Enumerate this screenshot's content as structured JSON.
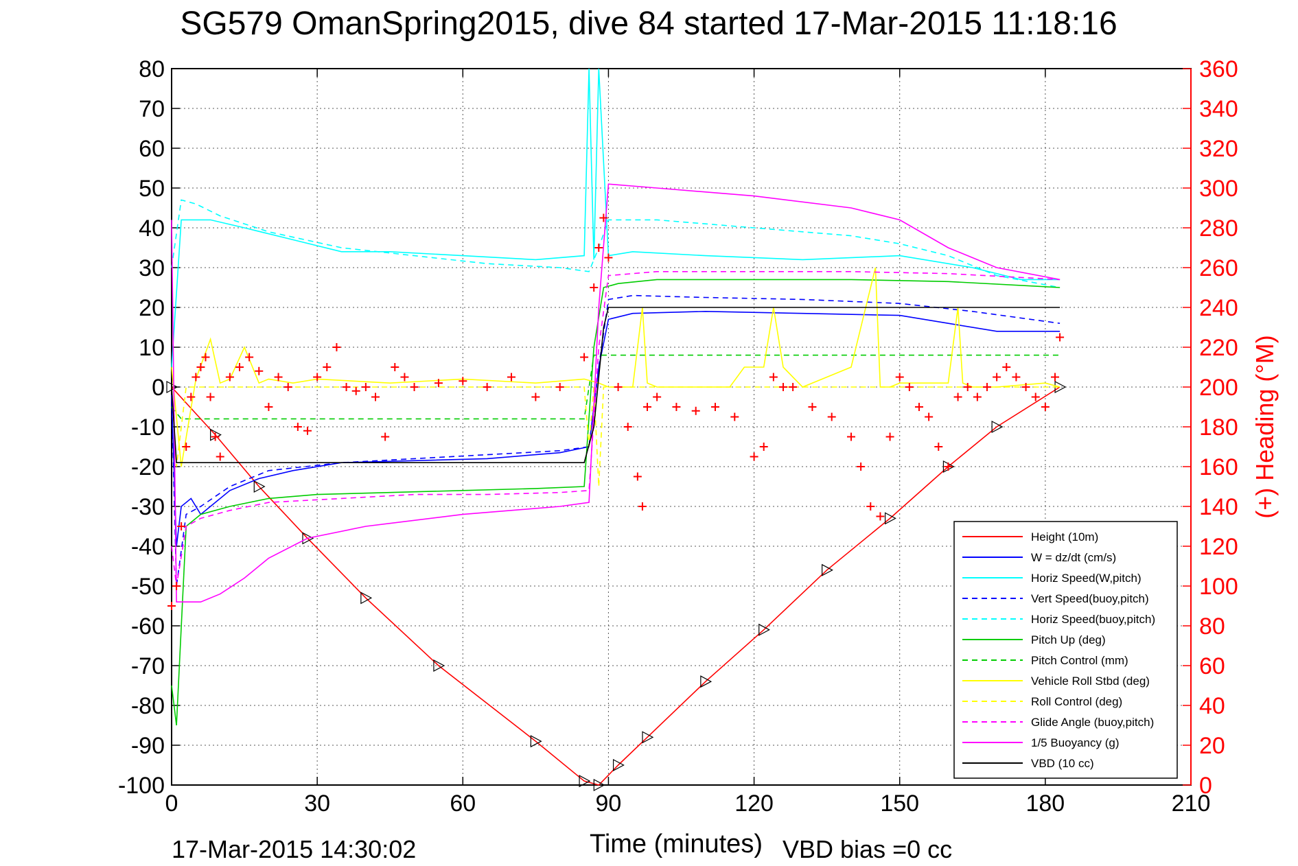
{
  "chart_data": {
    "type": "line",
    "title": "SG579 OmanSpring2015, dive 84 started 17-Mar-2015 11:18:16",
    "xlabel": "Time (minutes)",
    "ylabel": "",
    "ylabel_right": "(+) Heading (°M)",
    "footer_left": "17-Mar-2015 14:30:02",
    "footer_right": "VBD bias =0 cc",
    "xlim": [
      0,
      210
    ],
    "ylim": [
      -100,
      80
    ],
    "ylim_right": [
      0,
      360
    ],
    "xticks": [
      0,
      30,
      60,
      90,
      120,
      150,
      180,
      210
    ],
    "yticks": [
      -100,
      -90,
      -80,
      -70,
      -60,
      -50,
      -40,
      -30,
      -20,
      -10,
      0,
      10,
      20,
      30,
      40,
      50,
      60,
      70,
      80
    ],
    "yticks_right": [
      0,
      20,
      40,
      60,
      80,
      100,
      120,
      140,
      160,
      180,
      200,
      220,
      240,
      260,
      280,
      300,
      320,
      340,
      360
    ],
    "grid": true,
    "legend_position": "bottom-right",
    "legend": [
      {
        "label": "Height (10m)",
        "color": "#ff0000",
        "style": "solid"
      },
      {
        "label": "W = dz/dt (cm/s)",
        "color": "#0000ff",
        "style": "solid"
      },
      {
        "label": "Horiz Speed(W,pitch)",
        "color": "#00ffff",
        "style": "solid"
      },
      {
        "label": "Vert Speed(buoy,pitch)",
        "color": "#0000ff",
        "style": "dashed"
      },
      {
        "label": "Horiz Speed(buoy,pitch)",
        "color": "#00ffff",
        "style": "dashed"
      },
      {
        "label": "Pitch Up (deg)",
        "color": "#00cc00",
        "style": "solid"
      },
      {
        "label": "Pitch Control (mm)",
        "color": "#00cc00",
        "style": "dashed"
      },
      {
        "label": "Vehicle Roll Stbd (deg)",
        "color": "#ffff00",
        "style": "solid"
      },
      {
        "label": "Roll Control (deg)",
        "color": "#ffff00",
        "style": "dashed"
      },
      {
        "label": "Glide Angle (buoy,pitch)",
        "color": "#ff00ff",
        "style": "dashed"
      },
      {
        "label": "1/5 Buoyancy (g)",
        "color": "#ff00ff",
        "style": "solid"
      },
      {
        "label": "VBD (10 cc)",
        "color": "#000000",
        "style": "solid"
      }
    ],
    "series": [
      {
        "name": "Height (10m)",
        "color": "#ff0000",
        "style": "solid",
        "markers": "triangle",
        "x": [
          0,
          9,
          18,
          28,
          40,
          55,
          75,
          85,
          88,
          92,
          98,
          110,
          122,
          135,
          148,
          160,
          170,
          183
        ],
        "y": [
          0,
          -12,
          -25,
          -38,
          -53,
          -70,
          -89,
          -99,
          -100,
          -95,
          -88,
          -74,
          -61,
          -46,
          -33,
          -20,
          -10,
          0
        ]
      },
      {
        "name": "W = dz/dt (cm/s)",
        "color": "#0000ff",
        "style": "solid",
        "x": [
          0,
          1,
          2,
          4,
          6,
          8,
          12,
          18,
          25,
          35,
          50,
          65,
          80,
          86,
          88,
          90,
          95,
          110,
          130,
          150,
          160,
          170,
          183
        ],
        "y": [
          -2,
          -40,
          -30,
          -28,
          -32,
          -30,
          -26,
          -23,
          -21,
          -19,
          -18.5,
          -18,
          -16.5,
          -15,
          5,
          17,
          18.5,
          19,
          18.5,
          18,
          16,
          14,
          14
        ]
      },
      {
        "name": "Horiz Speed(W,pitch)",
        "color": "#00ffff",
        "style": "solid",
        "x": [
          0,
          2,
          4,
          8,
          15,
          25,
          35,
          45,
          60,
          75,
          85,
          86,
          87,
          88,
          90,
          95,
          110,
          130,
          150,
          165,
          175,
          183
        ],
        "y": [
          5,
          42,
          42,
          42,
          40,
          37,
          34,
          34,
          33,
          32,
          33,
          80,
          32,
          80,
          33,
          34,
          33,
          32,
          33,
          30,
          27,
          27
        ]
      },
      {
        "name": "Vert Speed(buoy,pitch)",
        "color": "#0000ff",
        "style": "dashed",
        "x": [
          0,
          1,
          3,
          6,
          12,
          20,
          35,
          50,
          65,
          80,
          86,
          88,
          90,
          95,
          110,
          130,
          150,
          165,
          183
        ],
        "y": [
          -2,
          -50,
          -32,
          -30,
          -25,
          -21,
          -19,
          -18,
          -17,
          -16,
          -15,
          5,
          22,
          23,
          22.5,
          22,
          21,
          19,
          16
        ]
      },
      {
        "name": "Horiz Speed(buoy,pitch)",
        "color": "#00ffff",
        "style": "dashed",
        "x": [
          0,
          2,
          5,
          10,
          20,
          35,
          50,
          65,
          80,
          86,
          88,
          90,
          100,
          120,
          140,
          150,
          160,
          170,
          183
        ],
        "y": [
          30,
          47,
          46,
          43,
          39,
          35,
          33,
          31,
          30,
          29,
          35,
          42,
          42,
          40,
          38,
          36,
          33,
          28,
          25
        ]
      },
      {
        "name": "Pitch Up (deg)",
        "color": "#00cc00",
        "style": "solid",
        "x": [
          0,
          1,
          3,
          6,
          12,
          20,
          30,
          45,
          60,
          75,
          85,
          87,
          89,
          92,
          100,
          120,
          140,
          160,
          183
        ],
        "y": [
          -75,
          -85,
          -35,
          -32,
          -30,
          -28,
          -27,
          -26.5,
          -26,
          -25.5,
          -25,
          10,
          25,
          26,
          27,
          27,
          27,
          26.5,
          25
        ]
      },
      {
        "name": "Pitch Control (mm)",
        "color": "#00cc00",
        "style": "dashed",
        "x": [
          0,
          2,
          5,
          10,
          20,
          40,
          60,
          85,
          87,
          90,
          100,
          120,
          140,
          160,
          183
        ],
        "y": [
          -5,
          -8,
          -8,
          -8,
          -8,
          -8,
          -8,
          -8,
          8,
          8,
          8,
          8,
          8,
          8,
          8
        ]
      },
      {
        "name": "Vehicle Roll Stbd (deg)",
        "color": "#ffff00",
        "style": "solid",
        "x": [
          0,
          2,
          5,
          8,
          10,
          12,
          15,
          18,
          20,
          25,
          30,
          45,
          60,
          75,
          85,
          88,
          90,
          95,
          97,
          98,
          100,
          115,
          118,
          122,
          124,
          126,
          130,
          140,
          145,
          146,
          148,
          150,
          160,
          162,
          163,
          165,
          170,
          180,
          183
        ],
        "y": [
          5,
          -20,
          2,
          12,
          1,
          2,
          10,
          1,
          2,
          1,
          2,
          1,
          2,
          1,
          2,
          1,
          0,
          0,
          20,
          1,
          0,
          0,
          5,
          5,
          20,
          5,
          0,
          5,
          30,
          0,
          0,
          1,
          1,
          20,
          1,
          0,
          0,
          1,
          0
        ]
      },
      {
        "name": "Roll Control (deg)",
        "color": "#ffff00",
        "style": "dashed",
        "x": [
          0,
          1,
          3,
          5,
          10,
          20,
          40,
          60,
          85,
          86,
          87,
          88,
          89,
          90,
          100,
          120,
          140,
          160,
          183
        ],
        "y": [
          0,
          -20,
          0,
          0,
          0,
          0,
          0,
          0,
          0,
          -15,
          0,
          -25,
          0,
          0,
          0,
          0,
          0,
          0,
          0
        ]
      },
      {
        "name": "Glide Angle (buoy,pitch)",
        "color": "#ff00ff",
        "style": "dashed",
        "x": [
          0,
          1,
          3,
          6,
          12,
          20,
          35,
          50,
          65,
          80,
          86,
          88,
          90,
          100,
          120,
          140,
          160,
          183
        ],
        "y": [
          -40,
          -50,
          -35,
          -33,
          -31,
          -29,
          -28,
          -27,
          -27,
          -26.5,
          -26,
          10,
          28,
          29,
          29,
          29,
          28.5,
          27
        ]
      },
      {
        "name": "1/5 Buoyancy (g)",
        "color": "#ff00ff",
        "style": "solid",
        "x": [
          0,
          1,
          3,
          6,
          10,
          15,
          20,
          28,
          40,
          60,
          80,
          86,
          88,
          90,
          100,
          120,
          140,
          150,
          160,
          170,
          183
        ],
        "y": [
          42,
          -54,
          -54,
          -54,
          -52,
          -48,
          -43,
          -38,
          -35,
          -32,
          -30,
          -29,
          20,
          51,
          50,
          48,
          45,
          42,
          35,
          30,
          27
        ]
      },
      {
        "name": "VBD (10 cc)",
        "color": "#000000",
        "style": "solid",
        "x": [
          0,
          1,
          2,
          85,
          87,
          89,
          90,
          183
        ],
        "y": [
          0,
          -19,
          -19,
          -19,
          -10,
          15,
          20,
          20
        ]
      },
      {
        "name": "(+) Heading (°M)",
        "color": "#ff0000",
        "style": "markers",
        "marker": "+",
        "axis": "right",
        "x": [
          0,
          1,
          2,
          3,
          4,
          5,
          6,
          7,
          8,
          9,
          10,
          12,
          14,
          16,
          18,
          20,
          22,
          24,
          26,
          28,
          30,
          32,
          34,
          36,
          38,
          40,
          42,
          44,
          46,
          48,
          50,
          55,
          60,
          65,
          70,
          75,
          80,
          85,
          87,
          88,
          89,
          90,
          92,
          94,
          96,
          97,
          98,
          100,
          104,
          108,
          112,
          116,
          120,
          122,
          124,
          126,
          128,
          132,
          136,
          140,
          142,
          144,
          146,
          148,
          150,
          152,
          154,
          156,
          158,
          160,
          162,
          164,
          166,
          168,
          170,
          172,
          174,
          176,
          178,
          180,
          182,
          183
        ],
        "y": [
          90,
          100,
          130,
          170,
          195,
          205,
          210,
          215,
          195,
          175,
          165,
          205,
          210,
          215,
          208,
          190,
          205,
          200,
          180,
          178,
          205,
          210,
          220,
          200,
          198,
          200,
          195,
          175,
          210,
          205,
          200,
          202,
          203,
          200,
          205,
          195,
          200,
          215,
          250,
          270,
          285,
          265,
          200,
          180,
          155,
          140,
          190,
          195,
          190,
          188,
          190,
          185,
          165,
          170,
          205,
          200,
          200,
          190,
          185,
          175,
          160,
          140,
          135,
          175,
          205,
          200,
          190,
          185,
          170,
          160,
          195,
          200,
          195,
          200,
          205,
          210,
          205,
          200,
          195,
          190,
          205,
          225
        ]
      }
    ]
  }
}
